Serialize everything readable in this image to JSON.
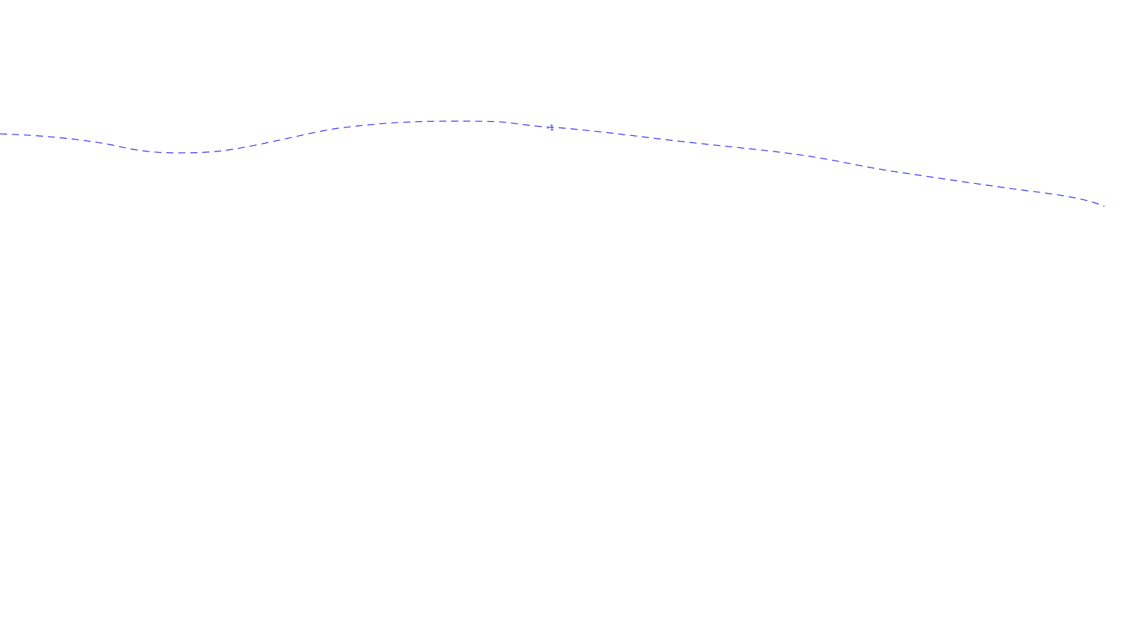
{
  "colors": {
    "background": "#ffffff",
    "contour": "#2b2bf0"
  },
  "contour": {
    "label": "-1"
  }
}
